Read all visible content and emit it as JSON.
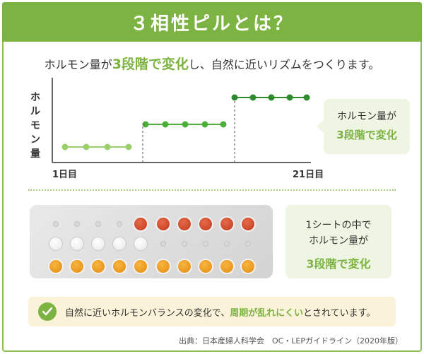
{
  "banner": {
    "title": "３相性ピルとは？"
  },
  "subtitle": {
    "pre": "ホルモン量が",
    "highlight": "3段階で変化",
    "post": "し、自然に近いリズムをつくります。"
  },
  "chart": {
    "ylabel": "ホルモン量",
    "x_start_label": "1日目",
    "x_end_label": "21日目",
    "colors": {
      "step1": "#9bcf6a",
      "step2": "#4caf3a",
      "step3": "#2e8b2e",
      "axis": "#333333"
    }
  },
  "chart_data": {
    "type": "line",
    "xlabel": "",
    "ylabel": "ホルモン量",
    "series": [
      {
        "x": [
          1,
          2,
          3,
          4
        ],
        "y": [
          1,
          1,
          1,
          1
        ]
      },
      {
        "x": [
          5,
          6,
          7,
          8,
          9
        ],
        "y": [
          2,
          2,
          2,
          2,
          2
        ]
      },
      {
        "x": [
          10,
          11,
          12,
          13,
          14
        ],
        "y": [
          3,
          3,
          3,
          3,
          3
        ]
      }
    ],
    "xlim": [
      1,
      21
    ],
    "ylim": [
      0,
      3
    ]
  },
  "callout1": {
    "line1": "ホルモン量が",
    "line2": "3段階で変化"
  },
  "sheet": {
    "rows": [
      {
        "type": "red",
        "count": 6
      },
      {
        "type": "white",
        "count": 5
      },
      {
        "type": "orange",
        "count": 10
      }
    ]
  },
  "callout2": {
    "line1": "1シートの中で",
    "line2": "ホルモン量が",
    "line3": "3段階で変化"
  },
  "note": {
    "icon": "check-icon",
    "pre": "自然に近いホルモンバランスの変化で、",
    "highlight": "周期が乱れにくい",
    "post": "とされています。"
  },
  "source": {
    "text": "出典：日本産婦人科学会　OC・LEPガイドライン（2020年版）"
  }
}
